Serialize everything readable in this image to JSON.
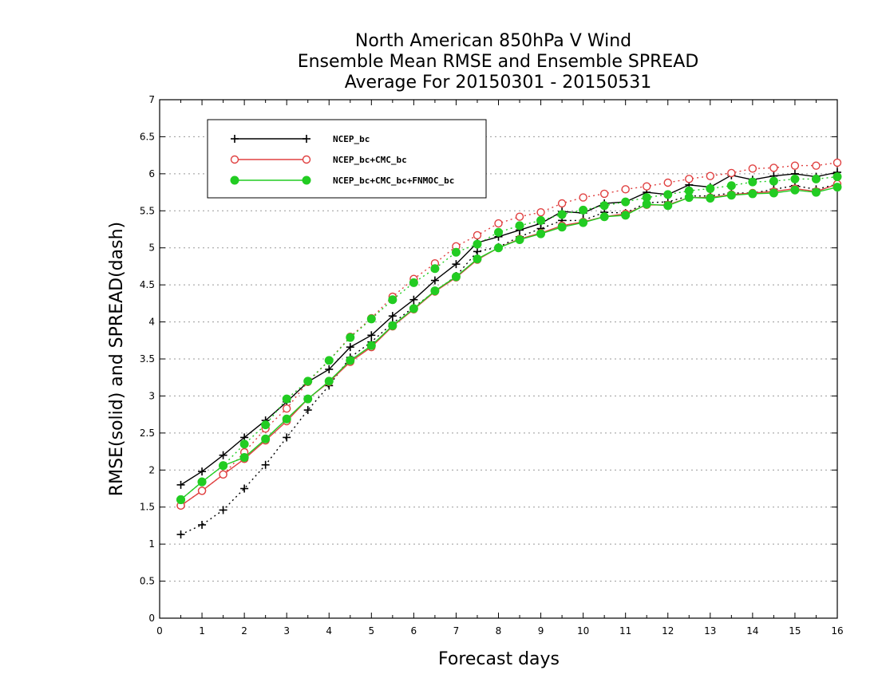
{
  "chart_data": {
    "type": "line",
    "title_lines": [
      "North American 850hPa V Wind",
      "Ensemble Mean RMSE and Ensemble SPREAD",
      "Average For 20150301 - 20150531"
    ],
    "xlabel": "Forecast days",
    "ylabel": "RMSE(solid) and SPREAD(dash)",
    "xlim": [
      0,
      16
    ],
    "ylim": [
      0,
      7
    ],
    "x_ticks": [
      0,
      1,
      2,
      3,
      4,
      5,
      6,
      7,
      8,
      9,
      10,
      11,
      12,
      13,
      14,
      15,
      16
    ],
    "x_tick_labels": [
      "0",
      "1",
      "2",
      "3",
      "4",
      "5",
      "6",
      "7",
      "8",
      "9",
      "10",
      "11",
      "12",
      "13",
      "14",
      "15",
      "16"
    ],
    "y_ticks": [
      0,
      0.5,
      1,
      1.5,
      2,
      2.5,
      3,
      3.5,
      4,
      4.5,
      5,
      5.5,
      6,
      6.5,
      7
    ],
    "y_tick_labels": [
      "0",
      "0.5",
      "1",
      "1.5",
      "2",
      "2.5",
      "3",
      "3.5",
      "4",
      "4.5",
      "5",
      "5.5",
      "6",
      "6.5",
      "7"
    ],
    "grid": "dotted horizontal",
    "legend_position": "top-left",
    "x": [
      0.5,
      1,
      1.5,
      2,
      2.5,
      3,
      3.5,
      4,
      4.5,
      5,
      5.5,
      6,
      6.5,
      7,
      7.5,
      8,
      8.5,
      9,
      9.5,
      10,
      10.5,
      11,
      11.5,
      12,
      12.5,
      13,
      13.5,
      14,
      14.5,
      15,
      15.5,
      16
    ],
    "series": [
      {
        "name": "NCEP_bc",
        "color": "#000000",
        "marker": "plus",
        "rmse": [
          1.8,
          1.98,
          2.2,
          2.44,
          2.67,
          2.92,
          3.19,
          3.36,
          3.66,
          3.82,
          4.08,
          4.3,
          4.56,
          4.78,
          5.07,
          5.15,
          5.24,
          5.33,
          5.49,
          5.47,
          5.6,
          5.62,
          5.75,
          5.72,
          5.85,
          5.82,
          5.98,
          5.92,
          5.97,
          6.0,
          5.96,
          6.02
        ],
        "spread": [
          1.13,
          1.26,
          1.46,
          1.75,
          2.07,
          2.44,
          2.81,
          3.14,
          3.52,
          3.73,
          3.98,
          4.2,
          4.41,
          4.62,
          4.95,
          5.01,
          5.15,
          5.26,
          5.37,
          5.37,
          5.48,
          5.47,
          5.61,
          5.62,
          5.7,
          5.7,
          5.74,
          5.74,
          5.79,
          5.84,
          5.79,
          5.86
        ]
      },
      {
        "name": "NCEP_bc+CMC_bc",
        "color": "#e04040",
        "marker": "open-circle",
        "rmse": [
          1.52,
          1.72,
          1.94,
          2.15,
          2.4,
          2.66,
          2.96,
          3.19,
          3.46,
          3.66,
          3.94,
          4.17,
          4.41,
          4.6,
          4.84,
          5.0,
          5.12,
          5.2,
          5.3,
          5.35,
          5.42,
          5.46,
          5.58,
          5.58,
          5.68,
          5.68,
          5.72,
          5.74,
          5.76,
          5.8,
          5.76,
          5.86
        ],
        "spread": [
          1.52,
          1.72,
          1.94,
          2.24,
          2.56,
          2.83,
          3.19,
          3.48,
          3.8,
          4.05,
          4.34,
          4.58,
          4.79,
          5.02,
          5.17,
          5.33,
          5.42,
          5.48,
          5.6,
          5.68,
          5.73,
          5.79,
          5.83,
          5.88,
          5.93,
          5.97,
          6.01,
          6.07,
          6.08,
          6.11,
          6.11,
          6.15
        ]
      },
      {
        "name": "NCEP_bc+CMC_bc+FNMOC_bc",
        "color": "#22cc22",
        "marker": "filled-circle",
        "rmse": [
          1.6,
          1.84,
          2.06,
          2.17,
          2.42,
          2.69,
          2.96,
          3.2,
          3.48,
          3.68,
          3.95,
          4.18,
          4.42,
          4.61,
          4.85,
          5.0,
          5.11,
          5.19,
          5.28,
          5.34,
          5.42,
          5.44,
          5.59,
          5.57,
          5.68,
          5.67,
          5.71,
          5.73,
          5.74,
          5.78,
          5.75,
          5.82
        ],
        "spread": [
          1.6,
          1.84,
          2.06,
          2.35,
          2.61,
          2.96,
          3.2,
          3.48,
          3.79,
          4.04,
          4.3,
          4.53,
          4.72,
          4.94,
          5.05,
          5.21,
          5.3,
          5.37,
          5.45,
          5.51,
          5.57,
          5.62,
          5.68,
          5.72,
          5.77,
          5.8,
          5.84,
          5.89,
          5.9,
          5.93,
          5.93,
          5.96
        ]
      }
    ]
  }
}
